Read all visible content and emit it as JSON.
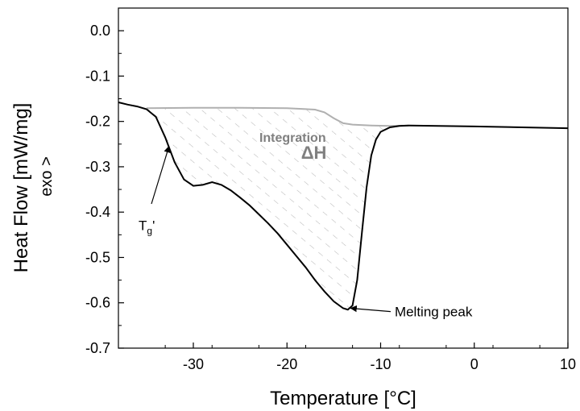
{
  "chart_data": {
    "type": "line",
    "title": "",
    "xlabel": "Temperature [°C]",
    "ylabel": "Heat Flow [mW/mg]",
    "ylabel_sub": "exo >",
    "xlim": [
      -38,
      10
    ],
    "ylim": [
      -0.7,
      0.05
    ],
    "x_ticks": [
      -30,
      -20,
      -10,
      0,
      10
    ],
    "x_tick_labels": [
      "-30",
      "-20",
      "-10",
      "0",
      "10"
    ],
    "y_ticks": [
      0.0,
      -0.1,
      -0.2,
      -0.3,
      -0.4,
      -0.5,
      -0.6,
      -0.7
    ],
    "y_tick_labels": [
      "0.0",
      "-0.1",
      "-0.2",
      "-0.3",
      "-0.4",
      "-0.5",
      "-0.6",
      "-0.7"
    ],
    "grid": false,
    "series": [
      {
        "color": "#000000",
        "points": [
          [
            -38,
            -0.158
          ],
          [
            -37,
            -0.163
          ],
          [
            -36,
            -0.167
          ],
          [
            -35,
            -0.173
          ],
          [
            -34,
            -0.19
          ],
          [
            -33,
            -0.235
          ],
          [
            -32,
            -0.29
          ],
          [
            -31,
            -0.328
          ],
          [
            -30,
            -0.342
          ],
          [
            -29,
            -0.34
          ],
          [
            -28,
            -0.334
          ],
          [
            -27,
            -0.34
          ],
          [
            -26,
            -0.352
          ],
          [
            -25,
            -0.368
          ],
          [
            -24,
            -0.385
          ],
          [
            -23,
            -0.405
          ],
          [
            -22,
            -0.425
          ],
          [
            -21,
            -0.447
          ],
          [
            -20,
            -0.472
          ],
          [
            -19,
            -0.497
          ],
          [
            -18,
            -0.522
          ],
          [
            -17,
            -0.55
          ],
          [
            -16,
            -0.575
          ],
          [
            -15,
            -0.597
          ],
          [
            -14,
            -0.612
          ],
          [
            -13.5,
            -0.615
          ],
          [
            -13,
            -0.606
          ],
          [
            -12.5,
            -0.55
          ],
          [
            -12,
            -0.445
          ],
          [
            -11.5,
            -0.345
          ],
          [
            -11,
            -0.275
          ],
          [
            -10.5,
            -0.24
          ],
          [
            -10,
            -0.223
          ],
          [
            -9,
            -0.213
          ],
          [
            -8,
            -0.21
          ],
          [
            -7,
            -0.209
          ],
          [
            0,
            -0.211
          ],
          [
            10,
            -0.215
          ]
        ]
      },
      {
        "color": "#b0b0b0",
        "points": [
          [
            -35,
            -0.171
          ],
          [
            -30,
            -0.17
          ],
          [
            -25,
            -0.17
          ],
          [
            -20,
            -0.171
          ],
          [
            -17,
            -0.174
          ],
          [
            -16,
            -0.18
          ],
          [
            -15,
            -0.193
          ],
          [
            -14,
            -0.204
          ],
          [
            -13,
            -0.207
          ],
          [
            -11,
            -0.209
          ],
          [
            -9,
            -0.21
          ],
          [
            -7,
            -0.209
          ]
        ]
      }
    ],
    "annotations": [
      {
        "text": "Integration",
        "x": -16.5,
        "y": -0.245
      },
      {
        "text": "ΔH",
        "x": -18.5,
        "y": -0.282
      },
      {
        "text": "T",
        "sub": "g",
        "suffix": "'",
        "x": -38,
        "y": -0.44
      },
      {
        "text": "Melting peak",
        "x": -8.5,
        "y": -0.63
      }
    ]
  }
}
